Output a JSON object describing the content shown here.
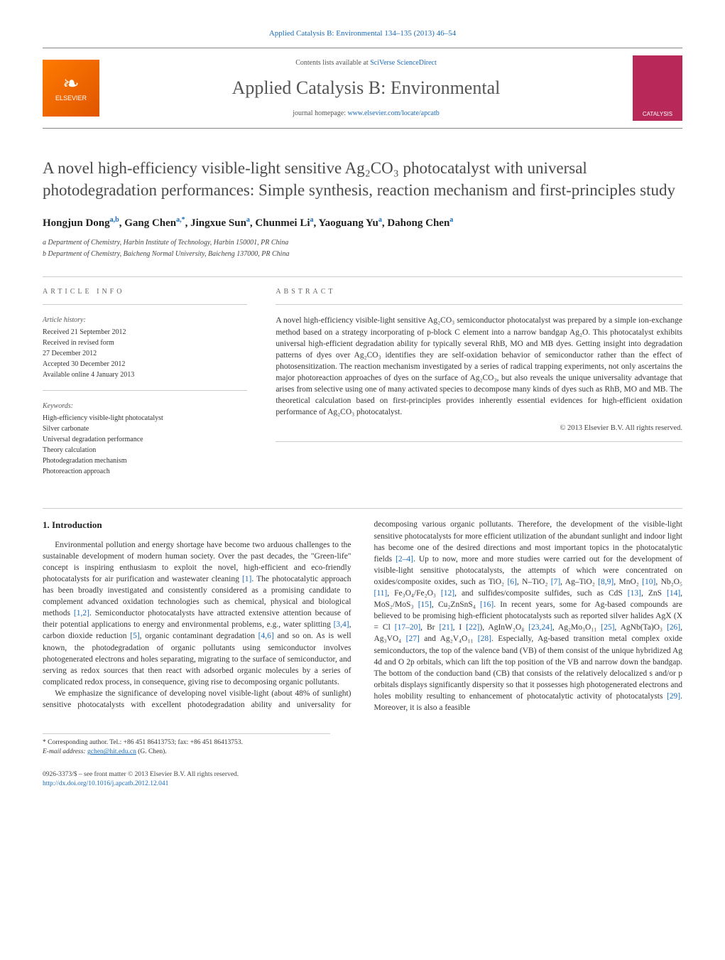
{
  "journal_ref": {
    "text": "Applied Catalysis B: Environmental 134–135 (2013) 46–54",
    "link_color": "#1a6bb8"
  },
  "header": {
    "publisher_logo_label": "ELSEVIER",
    "contents_prefix": "Contents lists available at ",
    "contents_link": "SciVerse ScienceDirect",
    "journal_name": "Applied Catalysis B: Environmental",
    "homepage_prefix": "journal homepage: ",
    "homepage_link": "www.elsevier.com/locate/apcatb",
    "cover_label": "CATALYSIS"
  },
  "title": "A novel high-efficiency visible-light sensitive Ag₂CO₃ photocatalyst with universal photodegradation performances: Simple synthesis, reaction mechanism and first-principles study",
  "authors_html": "Hongjun Dong",
  "authors": [
    {
      "name": "Hongjun Dong",
      "aff": "a,b"
    },
    {
      "name": "Gang Chen",
      "aff": "a,*"
    },
    {
      "name": "Jingxue Sun",
      "aff": "a"
    },
    {
      "name": "Chunmei Li",
      "aff": "a"
    },
    {
      "name": "Yaoguang Yu",
      "aff": "a"
    },
    {
      "name": "Dahong Chen",
      "aff": "a"
    }
  ],
  "affiliations": [
    "a Department of Chemistry, Harbin Institute of Technology, Harbin 150001, PR China",
    "b Department of Chemistry, Baicheng Normal University, Baicheng 137000, PR China"
  ],
  "article_info": {
    "label": "ARTICLE INFO",
    "history_label": "Article history:",
    "history": [
      "Received 21 September 2012",
      "Received in revised form",
      "27 December 2012",
      "Accepted 30 December 2012",
      "Available online 4 January 2013"
    ],
    "keywords_label": "Keywords:",
    "keywords": [
      "High-efficiency visible-light photocatalyst",
      "Silver carbonate",
      "Universal degradation performance",
      "Theory calculation",
      "Photodegradation mechanism",
      "Photoreaction approach"
    ]
  },
  "abstract": {
    "label": "ABSTRACT",
    "text": "A novel high-efficiency visible-light sensitive Ag₂CO₃ semiconductor photocatalyst was prepared by a simple ion-exchange method based on a strategy incorporating of p-block C element into a narrow bandgap Ag₂O. This photocatalyst exhibits universal high-efficient degradation ability for typically several RhB, MO and MB dyes. Getting insight into degradation patterns of dyes over Ag₂CO₃ identifies they are self-oxidation behavior of semiconductor rather than the effect of photosensitization. The reaction mechanism investigated by a series of radical trapping experiments, not only ascertains the major photoreaction approaches of dyes on the surface of Ag₂CO₃, but also reveals the unique universality advantage that arises from selective using one of many activated species to decompose many kinds of dyes such as RhB, MO and MB. The theoretical calculation based on first-principles provides inherently essential evidences for high-efficient oxidation performance of Ag₂CO₃ photocatalyst.",
    "copyright": "© 2013 Elsevier B.V. All rights reserved."
  },
  "intro": {
    "heading": "1. Introduction",
    "col1": "Environmental pollution and energy shortage have become two arduous challenges to the sustainable development of modern human society. Over the past decades, the \"Green-life\" concept is inspiring enthusiasm to exploit the novel, high-efficient and eco-friendly photocatalysts for air purification and wastewater cleaning [1]. The photocatalytic approach has been broadly investigated and consistently considered as a promising candidate to complement advanced oxidation technologies such as chemical, physical and biological methods [1,2]. Semiconductor photocatalysts have attracted extensive attention because of their potential applications to energy and environmental problems, e.g., water splitting [3,4], carbon dioxide reduction [5], organic contaminant degradation [4,6] and so on. As is well known, the photodegradation of organic pollutants using semiconductor involves photogenerated electrons and holes separating, migrating to the surface of semiconductor, and serving as redox sources that then react with adsorbed organic molecules by a series of complicated redox process, in consequence, giving rise to decomposing organic pollutants.",
    "col2": "We emphasize the significance of developing novel visible-light (about 48% of sunlight) sensitive photocatalysts with excellent photodegradation ability and universality for decomposing various organic pollutants. Therefore, the development of the visible-light sensitive photocatalysts for more efficient utilization of the abundant sunlight and indoor light has become one of the desired directions and most important topics in the photocatalytic fields [2–4]. Up to now, more and more studies were carried out for the development of visible-light sensitive photocatalysts, the attempts of which were concentrated on oxides/composite oxides, such as TiO₂ [6], N–TiO₂ [7], Ag–TiO₂ [8,9], MnO₂ [10], Nb₂O₅ [11], Fe₃O₄/Fe₂O₃ [12], and sulfides/composite sulfides, such as CdS [13], ZnS [14], MoS₂/MoS₃ [15], Cu₂ZnSnS₄ [16]. In recent years, some for Ag-based compounds are believed to be promising high-efficient photocatalysts such as reported silver halides AgX (X = Cl [17–20], Br [21], I [22]), AgInW₂O₈ [23,24], Ag₂Mo₃O₁₁ [25], AgNb(Ta)O₃ [26], Ag₃VO₄ [27] and Ag₂V₄O₁₁ [28]. Especially, Ag-based transition metal complex oxide semiconductors, the top of the valence band (VB) of them consist of the unique hybridized Ag 4d and O 2p orbitals, which can lift the top position of the VB and narrow down the bandgap. The bottom of the conduction band (CB) that consists of the relatively delocalized s and/or p orbitals displays significantly dispersity so that it possesses high photogenerated electrons and holes mobility resulting to enhancement of photocatalytic activity of photocatalysts [29]. Moreover, it is also a feasible"
  },
  "footnote": {
    "corresp": "* Corresponding author. Tel.: +86 451 86413753; fax: +86 451 86413753.",
    "email_label": "E-mail address:",
    "email": "gchen@hit.edu.cn",
    "email_whom": "(G. Chen)."
  },
  "footer": {
    "issn": "0926-3373/$ – see front matter © 2013 Elsevier B.V. All rights reserved.",
    "doi": "http://dx.doi.org/10.1016/j.apcatb.2012.12.041"
  },
  "colors": {
    "link": "#1a6bb8",
    "text": "#333333",
    "heading": "#4a4a4a",
    "publisher_orange": "#ff7a00",
    "cover_magenta": "#b8295a",
    "rule": "#cccccc"
  },
  "typography": {
    "body_pt": 11.5,
    "title_pt": 23,
    "journal_name_pt": 26,
    "authors_pt": 15,
    "small_pt": 10
  }
}
